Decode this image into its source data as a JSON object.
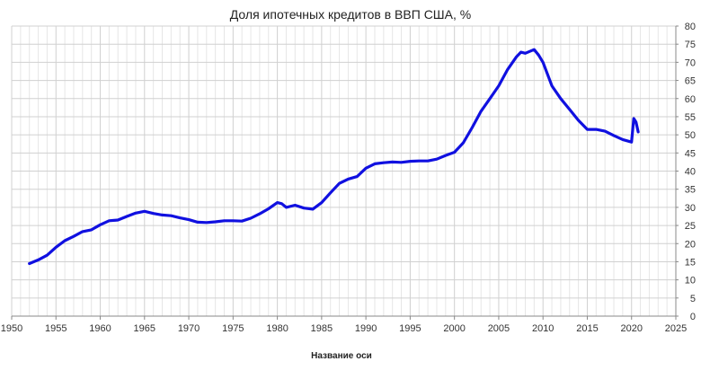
{
  "chart_data": {
    "type": "line",
    "title": "Доля ипотечных кредитов в ВВП США, %",
    "xlabel": "Название оси",
    "ylabel": "",
    "xlim": [
      1950,
      2025
    ],
    "ylim": [
      0,
      80
    ],
    "x_ticks": [
      1950,
      1955,
      1960,
      1965,
      1970,
      1975,
      1980,
      1985,
      1990,
      1995,
      2000,
      2005,
      2010,
      2015,
      2020,
      2025
    ],
    "y_ticks": [
      0,
      5,
      10,
      15,
      20,
      25,
      30,
      35,
      40,
      45,
      50,
      55,
      60,
      65,
      70,
      75,
      80
    ],
    "y_axis_position": "right",
    "grid": true,
    "line_color": "#1010e0",
    "grid_color": "#d0d0d0",
    "series": [
      {
        "x": [
          1952.0,
          1953.0,
          1954.0,
          1955.0,
          1956.0,
          1957.0,
          1958.0,
          1959.0,
          1960.0,
          1961.0,
          1962.0,
          1963.0,
          1964.0,
          1965.0,
          1966.0,
          1967.0,
          1968.0,
          1969.0,
          1970.0,
          1971.0,
          1972.0,
          1973.0,
          1974.0,
          1975.0,
          1976.0,
          1977.0,
          1978.0,
          1979.0,
          1980.0,
          1980.5,
          1981.0,
          1982.0,
          1983.0,
          1984.0,
          1985.0,
          1986.0,
          1987.0,
          1988.0,
          1989.0,
          1990.0,
          1991.0,
          1992.0,
          1993.0,
          1994.0,
          1995.0,
          1996.0,
          1997.0,
          1998.0,
          1999.0,
          2000.0,
          2001.0,
          2002.0,
          2003.0,
          2004.0,
          2005.0,
          2006.0,
          2007.0,
          2007.5,
          2008.0,
          2009.0,
          2009.5,
          2010.0,
          2011.0,
          2012.0,
          2013.0,
          2014.0,
          2015.0,
          2016.0,
          2017.0,
          2018.0,
          2019.0,
          2020.0,
          2020.25,
          2020.5,
          2020.75
        ],
        "values": [
          14.5,
          15.5,
          16.8,
          19.0,
          20.8,
          22.0,
          23.3,
          23.8,
          25.2,
          26.3,
          26.5,
          27.5,
          28.4,
          28.9,
          28.3,
          27.9,
          27.7,
          27.1,
          26.6,
          25.9,
          25.8,
          26.0,
          26.3,
          26.3,
          26.2,
          27.0,
          28.2,
          29.6,
          31.3,
          31.0,
          30.0,
          30.6,
          29.8,
          29.5,
          31.3,
          34.0,
          36.6,
          37.8,
          38.5,
          40.8,
          42.0,
          42.3,
          42.5,
          42.4,
          42.7,
          42.8,
          42.8,
          43.3,
          44.3,
          45.2,
          47.8,
          52.0,
          56.5,
          60.0,
          63.5,
          68.0,
          71.5,
          72.8,
          72.5,
          73.5,
          72.0,
          70.0,
          63.5,
          60.0,
          57.0,
          54.0,
          51.5,
          51.5,
          51.0,
          49.8,
          48.7,
          48.0,
          54.5,
          53.5,
          50.8
        ]
      }
    ]
  }
}
